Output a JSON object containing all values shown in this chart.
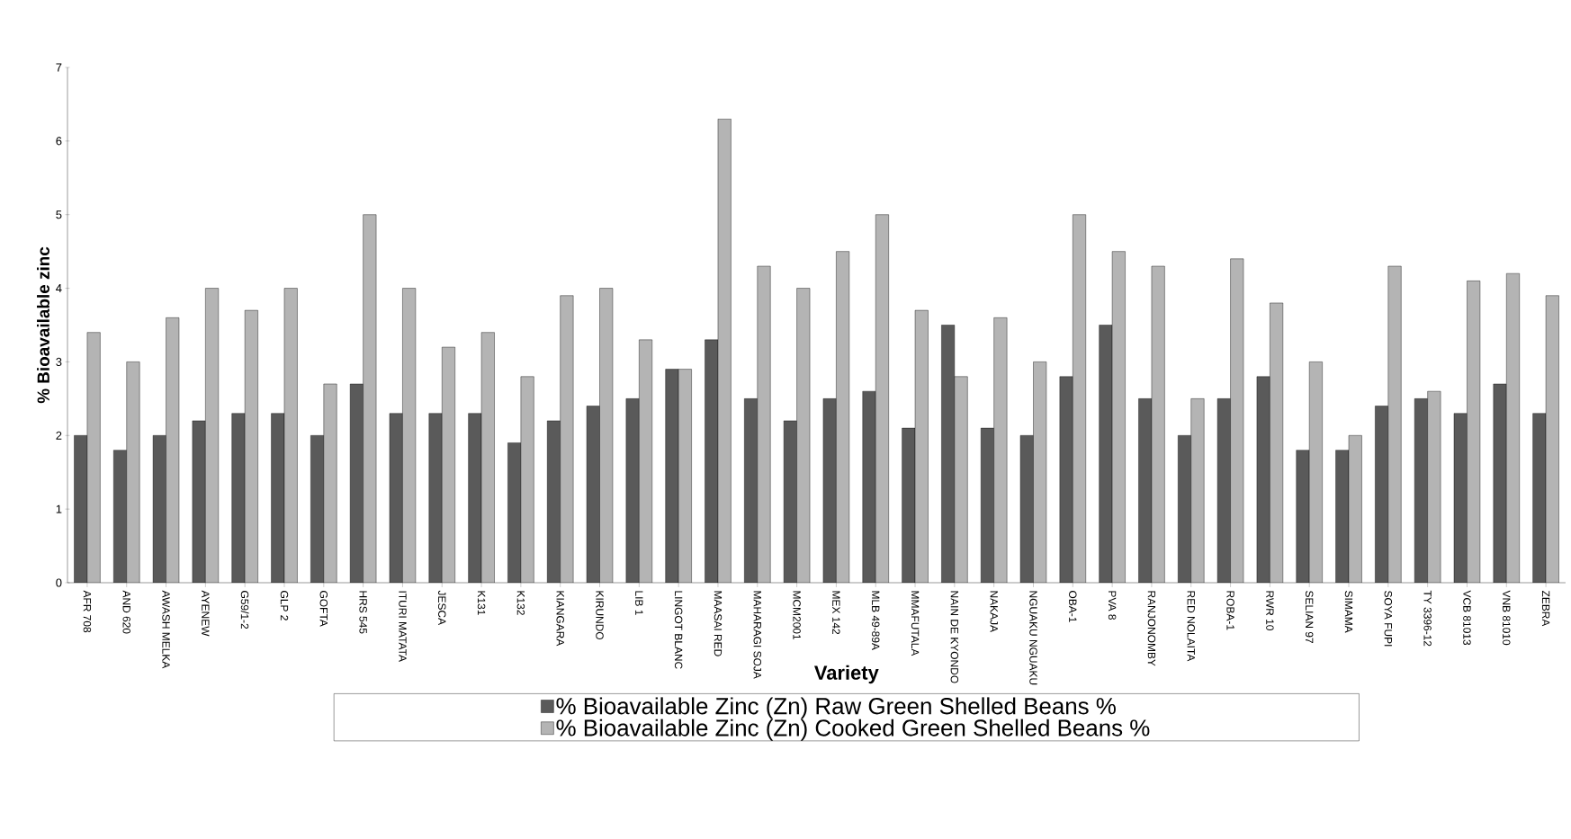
{
  "chart_data": {
    "type": "bar",
    "xlabel": "Variety",
    "ylabel": "% Bioavailable zinc",
    "categories": [
      "AFR 708",
      "AND 620",
      "AWASH MELKA",
      "AYENEW",
      "G59/1-2",
      "GLP 2",
      "GOFTA",
      "HRS 545",
      "ITURI MATATA",
      "JESCA",
      "K131",
      "K132",
      "KIANGARA",
      "KIRUNDO",
      "LIB 1",
      "LINGOT BLANC",
      "MAASAI RED",
      "MAHARAGI SOJA",
      "MCM2001",
      "MEX 142",
      "MLB 49-89A",
      "MMAFUTALA",
      "NAIN DE KYONDO",
      "NAKAJA",
      "NGUAKU NGUAKU",
      "OBA-1",
      "PVA 8",
      "RANJONOMBY",
      "RED NOLAITA",
      "ROBA-1",
      "RWR 10",
      "SELIAN 97",
      "SIMAMA",
      "SOYA FUPI",
      "TY 3396-12",
      "VCB 81013",
      "VNB 81010",
      "ZEBRA"
    ],
    "series": [
      {
        "name": "% Bioavailable Zinc (Zn) Raw Green Shelled Beans %",
        "color": "#5a5a5a",
        "values": [
          2.0,
          1.8,
          2.0,
          2.2,
          2.3,
          2.3,
          2.0,
          2.7,
          2.3,
          2.3,
          2.3,
          1.9,
          2.2,
          2.4,
          2.5,
          2.9,
          3.3,
          2.5,
          2.2,
          2.5,
          2.6,
          2.1,
          3.5,
          2.1,
          2.0,
          2.8,
          3.5,
          2.5,
          2.0,
          2.5,
          2.8,
          1.8,
          1.8,
          2.4,
          2.5,
          2.3,
          2.7,
          2.3
        ]
      },
      {
        "name": "% Bioavailable Zinc (Zn)  Cooked Green Shelled Beans %",
        "color": "#b4b4b4",
        "values": [
          3.4,
          3.0,
          3.6,
          4.0,
          3.7,
          4.0,
          2.7,
          5.0,
          4.0,
          3.2,
          3.4,
          2.8,
          3.9,
          4.0,
          3.3,
          2.9,
          6.3,
          4.3,
          4.0,
          4.5,
          5.0,
          3.7,
          2.8,
          3.6,
          3.0,
          5.0,
          4.5,
          4.3,
          2.5,
          4.4,
          3.8,
          3.0,
          2.0,
          4.3,
          2.6,
          4.1,
          4.2,
          3.9
        ]
      }
    ],
    "ylim": [
      0,
      7
    ],
    "yticks": [
      0,
      1,
      2,
      3,
      4,
      5,
      6,
      7
    ],
    "legend": "bottom"
  }
}
